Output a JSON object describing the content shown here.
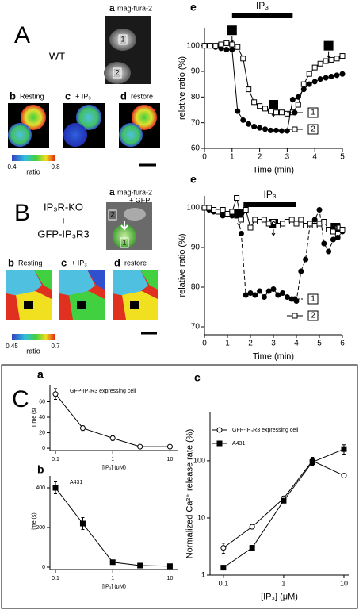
{
  "panels": {
    "A": {
      "letter": "A",
      "label_lines": [
        "WT"
      ],
      "image_a_letter": "a",
      "image_a_lines": [
        "mag-fura-2"
      ],
      "roi": [
        "1",
        "2"
      ],
      "images": [
        {
          "letter": "b",
          "label": "Resting"
        },
        {
          "letter": "c",
          "label": "+ IP₃"
        },
        {
          "letter": "d",
          "label": "restore"
        }
      ],
      "colorbar": {
        "min": 0.4,
        "max": 0.8,
        "label": "ratio"
      }
    },
    "B": {
      "letter": "B",
      "label_lines": [
        "IP₃R-KO",
        "+",
        "GFP-IP₃R3"
      ],
      "image_a_letter": "a",
      "image_a_lines": [
        "mag-fura-2",
        "+ GFP"
      ],
      "roi": [
        "2",
        "1"
      ],
      "images": [
        {
          "letter": "b",
          "label": "Resting"
        },
        {
          "letter": "c",
          "label": "+ IP₃"
        },
        {
          "letter": "d",
          "label": "restore"
        }
      ],
      "colorbar": {
        "min": 0.45,
        "max": 0.7,
        "label": "ratio"
      }
    },
    "C": {
      "letter": "C"
    }
  },
  "chart_data": [
    {
      "type": "line",
      "panel_label": "e",
      "xlabel": "Time (min)",
      "ylabel": "relative ratio (%)",
      "x": [
        0,
        0.2,
        0.4,
        0.6,
        0.8,
        1.0,
        1.2,
        1.4,
        1.6,
        1.8,
        2.0,
        2.2,
        2.4,
        2.6,
        2.8,
        3.0,
        3.2,
        3.4,
        3.6,
        3.8,
        4.0,
        4.2,
        4.4,
        4.6,
        4.8,
        5.0
      ],
      "series": [
        {
          "name": "1",
          "color": "#000000",
          "marker": "filled-circle",
          "line_style": "solid",
          "values": [
            100,
            100,
            99.5,
            99,
            98.5,
            98.5,
            74.5,
            71,
            69.5,
            68.5,
            68,
            67.5,
            67,
            67,
            66.8,
            66.8,
            79,
            80,
            83,
            85,
            86,
            87,
            87.5,
            88,
            88.5,
            89
          ]
        },
        {
          "name": "2",
          "color": "#000000",
          "marker": "open-square",
          "line_style": "solid",
          "values": [
            100,
            100,
            100,
            100.5,
            101,
            100.5,
            99.5,
            95,
            83,
            78,
            76.5,
            75.5,
            74.5,
            74,
            74,
            73.5,
            74,
            77,
            85,
            89,
            91.5,
            93,
            94,
            94.5,
            95,
            96
          ]
        }
      ],
      "xlim": [
        0,
        5
      ],
      "ylim": [
        60,
        107
      ],
      "xticks": [
        0,
        1,
        2,
        3,
        4,
        5
      ],
      "yticks": [
        60,
        70,
        80,
        90,
        100
      ],
      "stimulus": {
        "label": "IP₃",
        "start": 1,
        "end": 3.2
      },
      "events": [
        {
          "label": "b",
          "x": 1,
          "y": 106
        },
        {
          "label": "c",
          "x": 2.5,
          "y": 77
        },
        {
          "label": "d",
          "x": 4.5,
          "y": 100
        }
      ],
      "legend": "lower right"
    },
    {
      "type": "line",
      "panel_label": "e",
      "xlabel": "Time (min)",
      "ylabel": "relative ratio (%)",
      "x": [
        0,
        0.2,
        0.4,
        0.6,
        0.8,
        1.0,
        1.2,
        1.4,
        1.6,
        1.8,
        2.0,
        2.2,
        2.4,
        2.6,
        2.8,
        3.0,
        3.2,
        3.4,
        3.6,
        3.8,
        4.0,
        4.2,
        4.4,
        4.6,
        4.8,
        5.0,
        5.2,
        5.4,
        5.6,
        5.8,
        6.0
      ],
      "series": [
        {
          "name": "1",
          "color": "#000000",
          "marker": "filled-circle",
          "line_style": "dashed",
          "values": [
            100,
            99.5,
            99,
            99,
            98,
            98.5,
            98,
            99,
            93.5,
            78,
            78.5,
            78,
            79,
            77.5,
            79,
            79.5,
            78,
            78.5,
            77.5,
            77,
            76.5,
            84,
            87,
            96,
            97,
            99.5,
            91,
            89,
            92,
            92.5,
            94
          ]
        },
        {
          "name": "2",
          "color": "#000000",
          "marker": "open-square",
          "line_style": "solid",
          "values": [
            100,
            100,
            99.5,
            99,
            99.5,
            98.5,
            99,
            102.5,
            97,
            99.5,
            95,
            97,
            96.5,
            97,
            96,
            96.5,
            95.5,
            96,
            96.5,
            97,
            96,
            97,
            95.5,
            96,
            95.5,
            96,
            96.5,
            94.5,
            94,
            95,
            94.5
          ]
        }
      ],
      "xlim": [
        0,
        6
      ],
      "ylim": [
        68,
        103
      ],
      "xticks": [
        0,
        1,
        2,
        3,
        4,
        5,
        6
      ],
      "yticks": [
        70,
        80,
        90,
        100
      ],
      "stimulus": {
        "label": "IP₃",
        "start": 1.7,
        "end": 4.0
      },
      "events": [
        {
          "label": "b",
          "x": 1.5,
          "y": 98.5
        },
        {
          "label": "c",
          "x": 3,
          "y": 96
        },
        {
          "label": "d",
          "x": 5.7,
          "y": 95
        }
      ],
      "legend": "lower right"
    },
    {
      "type": "line",
      "panel_label": "a",
      "title": "GFP-IP₃R3 expressing cell",
      "xlabel": "[IP₃] (μM)",
      "ylabel": "Time (s)",
      "x": [
        0.1,
        0.3,
        1,
        3,
        10
      ],
      "series": [
        {
          "color": "#000000",
          "marker": "open-circle",
          "line_style": "solid",
          "values": [
            70,
            26,
            13,
            2,
            2
          ],
          "errors": [
            7,
            3,
            3,
            1,
            1
          ]
        }
      ],
      "xscale": "log",
      "xlim": [
        0.08,
        14
      ],
      "ylim": [
        -3,
        82
      ],
      "xticks": [
        0.1,
        1,
        10
      ],
      "yticks": [
        0,
        20,
        40,
        60
      ]
    },
    {
      "type": "line",
      "panel_label": "b",
      "title": "A431",
      "xlabel": "[IP₃] (μM)",
      "ylabel": "Time (s)",
      "x": [
        0.1,
        0.3,
        1,
        3,
        10
      ],
      "series": [
        {
          "color": "#000000",
          "marker": "filled-square",
          "line_style": "solid",
          "values": [
            400,
            220,
            25,
            8,
            5
          ],
          "errors": [
            30,
            30,
            5,
            3,
            3
          ]
        }
      ],
      "xscale": "log",
      "xlim": [
        0.08,
        14
      ],
      "ylim": [
        -12,
        460
      ],
      "xticks": [
        0.1,
        1,
        10
      ],
      "yticks": [
        0,
        200,
        400
      ]
    },
    {
      "type": "line",
      "panel_label": "c",
      "xlabel": "[IP₃] (μM)",
      "ylabel": "Normalized Ca²⁺ release rate (%)",
      "x": [
        0.1,
        0.3,
        1,
        3,
        10
      ],
      "series": [
        {
          "name": "GFP-IP₃R3 expressing cell",
          "color": "#000000",
          "marker": "open-circle",
          "line_style": "solid",
          "values": [
            3,
            7,
            22,
            100,
            55
          ],
          "errors": [
            0.6,
            0.5,
            2,
            15,
            3
          ]
        },
        {
          "name": "A431",
          "color": "#000000",
          "marker": "filled-square",
          "line_style": "solid",
          "values": [
            1.35,
            3,
            20,
            95,
            160
          ],
          "errors": [
            0.1,
            0.3,
            1.5,
            12,
            30
          ]
        }
      ],
      "xscale": "log",
      "yscale": "log",
      "xlim": [
        0.06,
        12
      ],
      "ylim": [
        1,
        700
      ],
      "xticks": [
        0.1,
        1,
        10
      ],
      "yticks": [
        1,
        10,
        100
      ],
      "legend": "upper left"
    }
  ]
}
